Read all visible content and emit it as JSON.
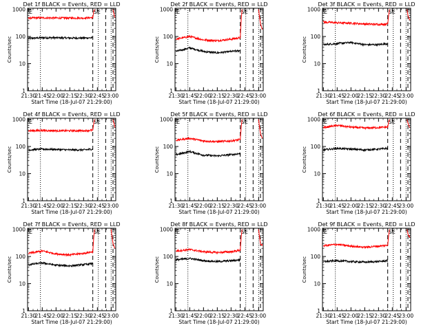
{
  "figure": {
    "common": {
      "ylabel": "Counts/sec",
      "xlabel": "Start Time (18-Jul-07 21:29:00)",
      "y_ticks": [
        "1",
        "10",
        "100",
        "1000"
      ],
      "x_ticks": [
        "21:30",
        "21:45",
        "22:00",
        "22:15",
        "22:30",
        "22:45",
        "23:00"
      ],
      "corner_marks": [
        "E",
        "SE"
      ]
    },
    "colors": {
      "events": "#000000",
      "lld": "#ff0000",
      "axes": "#000000",
      "background": "#ffffff"
    }
  },
  "chart_data": [
    {
      "type": "line",
      "title": "Det 1f BLACK = Events, RED = LLD",
      "ylog": true,
      "ylim": [
        1,
        1100
      ],
      "xlim": [
        "21:29",
        "23:05"
      ],
      "xlabel": "Start Time (18-Jul-07 21:29:00)",
      "ylabel": "Counts/sec",
      "markers": {
        "dotted": [
          "21:43",
          "22:46",
          "23:00"
        ],
        "dashed": [
          "22:40",
          "22:54",
          "23:02"
        ]
      },
      "series": [
        {
          "name": "Events",
          "color": "#000000",
          "x": [
            "21:30",
            "21:45",
            "22:00",
            "22:15",
            "22:30",
            "22:40"
          ],
          "y": [
            85,
            90,
            90,
            88,
            88,
            90
          ]
        },
        {
          "name": "LLD",
          "color": "#ff0000",
          "x": [
            "21:30",
            "21:45",
            "22:00",
            "22:15",
            "22:30",
            "22:40",
            "22:41",
            "22:42"
          ],
          "y": [
            480,
            490,
            480,
            480,
            480,
            500,
            800,
            1000
          ]
        },
        {
          "name": "LLD",
          "color": "#ff0000",
          "x": [
            "23:02",
            "23:03",
            "23:04"
          ],
          "y": [
            1000,
            700,
            500
          ]
        }
      ]
    },
    {
      "type": "line",
      "title": "Det 2f BLACK = Events, RED = LLD",
      "ylog": true,
      "ylim": [
        1,
        1100
      ],
      "xlim": [
        "21:29",
        "23:05"
      ],
      "xlabel": "Start Time (18-Jul-07 21:29:00)",
      "ylabel": "Counts/sec",
      "markers": {
        "dotted": [
          "21:43",
          "22:46",
          "23:00"
        ],
        "dashed": [
          "22:40",
          "22:54",
          "23:02"
        ]
      },
      "series": [
        {
          "name": "Events",
          "color": "#000000",
          "x": [
            "21:30",
            "21:45",
            "22:00",
            "22:15",
            "22:30",
            "22:40"
          ],
          "y": [
            28,
            38,
            28,
            25,
            28,
            30
          ]
        },
        {
          "name": "LLD",
          "color": "#ff0000",
          "x": [
            "21:30",
            "21:45",
            "22:00",
            "22:15",
            "22:30",
            "22:40",
            "22:41",
            "22:42"
          ],
          "y": [
            80,
            100,
            75,
            70,
            80,
            90,
            400,
            1000
          ]
        },
        {
          "name": "LLD",
          "color": "#ff0000",
          "x": [
            "23:00",
            "23:01",
            "23:02",
            "23:04"
          ],
          "y": [
            1000,
            500,
            300,
            180
          ]
        }
      ]
    },
    {
      "type": "line",
      "title": "Det 3f BLACK = Events, RED = LLD",
      "ylog": true,
      "ylim": [
        1,
        1100
      ],
      "xlim": [
        "21:29",
        "23:05"
      ],
      "xlabel": "Start Time (18-Jul-07 21:29:00)",
      "ylabel": "Counts/sec",
      "markers": {
        "dotted": [
          "21:43",
          "22:46",
          "23:00"
        ],
        "dashed": [
          "22:40",
          "22:54",
          "23:02"
        ]
      },
      "series": [
        {
          "name": "Events",
          "color": "#000000",
          "x": [
            "21:30",
            "21:45",
            "22:00",
            "22:15",
            "22:30",
            "22:40"
          ],
          "y": [
            50,
            55,
            60,
            50,
            50,
            55
          ]
        },
        {
          "name": "LLD",
          "color": "#ff0000",
          "x": [
            "21:30",
            "21:45",
            "22:00",
            "22:15",
            "22:30",
            "22:40",
            "22:41",
            "22:42"
          ],
          "y": [
            340,
            320,
            310,
            290,
            280,
            290,
            600,
            1000
          ]
        },
        {
          "name": "LLD",
          "color": "#ff0000",
          "x": [
            "23:01",
            "23:02",
            "23:04"
          ],
          "y": [
            1000,
            600,
            400
          ]
        }
      ]
    },
    {
      "type": "line",
      "title": "Det 4f BLACK = Events, RED = LLD",
      "ylog": true,
      "ylim": [
        1,
        1100
      ],
      "xlim": [
        "21:29",
        "23:05"
      ],
      "xlabel": "Start Time (18-Jul-07 21:29:00)",
      "ylabel": "Counts/sec",
      "markers": {
        "dotted": [
          "21:43",
          "22:46",
          "23:00"
        ],
        "dashed": [
          "22:40",
          "22:54",
          "23:02"
        ]
      },
      "series": [
        {
          "name": "Events",
          "color": "#000000",
          "x": [
            "21:30",
            "21:45",
            "22:00",
            "22:15",
            "22:30",
            "22:40"
          ],
          "y": [
            75,
            80,
            78,
            75,
            75,
            80
          ]
        },
        {
          "name": "LLD",
          "color": "#ff0000",
          "x": [
            "21:30",
            "21:45",
            "22:00",
            "22:15",
            "22:30",
            "22:40",
            "22:41",
            "22:42"
          ],
          "y": [
            380,
            390,
            380,
            380,
            380,
            400,
            700,
            1000
          ]
        },
        {
          "name": "LLD",
          "color": "#ff0000",
          "x": [
            "23:02",
            "23:03",
            "23:04"
          ],
          "y": [
            1000,
            700,
            500
          ]
        }
      ]
    },
    {
      "type": "line",
      "title": "Det 5f BLACK = Events, RED = LLD",
      "ylog": true,
      "ylim": [
        1,
        1100
      ],
      "xlim": [
        "21:29",
        "23:05"
      ],
      "xlabel": "Start Time (18-Jul-07 21:29:00)",
      "ylabel": "Counts/sec",
      "markers": {
        "dotted": [
          "21:43",
          "22:46",
          "23:00"
        ],
        "dashed": [
          "22:40",
          "22:54",
          "23:02"
        ]
      },
      "series": [
        {
          "name": "Events",
          "color": "#000000",
          "x": [
            "21:30",
            "21:45",
            "22:00",
            "22:15",
            "22:30",
            "22:40"
          ],
          "y": [
            50,
            65,
            48,
            45,
            50,
            55
          ]
        },
        {
          "name": "LLD",
          "color": "#ff0000",
          "x": [
            "21:30",
            "21:45",
            "22:00",
            "22:15",
            "22:30",
            "22:40",
            "22:41",
            "22:42"
          ],
          "y": [
            170,
            200,
            160,
            150,
            160,
            180,
            500,
            1000
          ]
        },
        {
          "name": "LLD",
          "color": "#ff0000",
          "x": [
            "23:00",
            "23:01",
            "23:02",
            "23:04"
          ],
          "y": [
            1000,
            500,
            300,
            200
          ]
        }
      ]
    },
    {
      "type": "line",
      "title": "Det 6f BLACK = Events, RED = LLD",
      "ylog": true,
      "ylim": [
        1,
        1100
      ],
      "xlim": [
        "21:29",
        "23:05"
      ],
      "xlabel": "Start Time (18-Jul-07 21:29:00)",
      "ylabel": "Counts/sec",
      "markers": {
        "dotted": [
          "21:43",
          "22:46",
          "23:00"
        ],
        "dashed": [
          "22:40",
          "22:54",
          "23:02"
        ]
      },
      "series": [
        {
          "name": "Events",
          "color": "#000000",
          "x": [
            "21:30",
            "21:45",
            "22:00",
            "22:15",
            "22:30",
            "22:40"
          ],
          "y": [
            75,
            85,
            80,
            75,
            80,
            85
          ]
        },
        {
          "name": "LLD",
          "color": "#ff0000",
          "x": [
            "21:30",
            "21:45",
            "22:00",
            "22:15",
            "22:30",
            "22:40",
            "22:41",
            "22:42"
          ],
          "y": [
            500,
            600,
            520,
            480,
            500,
            520,
            800,
            1000
          ]
        },
        {
          "name": "LLD",
          "color": "#ff0000",
          "x": [
            "23:01",
            "23:02",
            "23:04"
          ],
          "y": [
            1000,
            700,
            500
          ]
        }
      ]
    },
    {
      "type": "line",
      "title": "Det 7f BLACK = Events, RED = LLD",
      "ylog": true,
      "ylim": [
        1,
        1100
      ],
      "xlim": [
        "21:29",
        "23:05"
      ],
      "xlabel": "Start Time (18-Jul-07 21:29:00)",
      "ylabel": "Counts/sec",
      "markers": {
        "dotted": [
          "21:43",
          "22:46",
          "23:00"
        ],
        "dashed": [
          "22:40",
          "22:54",
          "23:02"
        ]
      },
      "series": [
        {
          "name": "Events",
          "color": "#000000",
          "x": [
            "21:30",
            "21:45",
            "22:00",
            "22:15",
            "22:30",
            "22:40"
          ],
          "y": [
            50,
            58,
            48,
            45,
            50,
            55
          ]
        },
        {
          "name": "LLD",
          "color": "#ff0000",
          "x": [
            "21:30",
            "21:45",
            "22:00",
            "22:15",
            "22:30",
            "22:40",
            "22:41",
            "22:42"
          ],
          "y": [
            130,
            160,
            125,
            115,
            130,
            150,
            500,
            1000
          ]
        },
        {
          "name": "LLD",
          "color": "#ff0000",
          "x": [
            "23:00",
            "23:01",
            "23:02",
            "23:04"
          ],
          "y": [
            1000,
            500,
            300,
            200
          ]
        }
      ]
    },
    {
      "type": "line",
      "title": "Det 8f BLACK = Events, RED = LLD",
      "ylog": true,
      "ylim": [
        1,
        1100
      ],
      "xlim": [
        "21:29",
        "23:05"
      ],
      "xlabel": "Start Time (18-Jul-07 21:29:00)",
      "ylabel": "Counts/sec",
      "markers": {
        "dotted": [
          "21:43",
          "22:46",
          "23:00"
        ],
        "dashed": [
          "22:40",
          "22:54",
          "23:02"
        ]
      },
      "series": [
        {
          "name": "Events",
          "color": "#000000",
          "x": [
            "21:30",
            "21:45",
            "22:00",
            "22:15",
            "22:30",
            "22:40"
          ],
          "y": [
            75,
            85,
            70,
            65,
            70,
            75
          ]
        },
        {
          "name": "LLD",
          "color": "#ff0000",
          "x": [
            "21:30",
            "21:45",
            "22:00",
            "22:15",
            "22:30",
            "22:40",
            "22:41",
            "22:42"
          ],
          "y": [
            160,
            180,
            150,
            140,
            150,
            170,
            500,
            1000
          ]
        },
        {
          "name": "LLD",
          "color": "#ff0000",
          "x": [
            "23:00",
            "23:01",
            "23:02",
            "23:04"
          ],
          "y": [
            1000,
            500,
            300,
            250
          ]
        }
      ]
    },
    {
      "type": "line",
      "title": "Det 9f BLACK = Events, RED = LLD",
      "ylog": true,
      "ylim": [
        1,
        1100
      ],
      "xlim": [
        "21:29",
        "23:05"
      ],
      "xlabel": "Start Time (18-Jul-07 21:29:00)",
      "ylabel": "Counts/sec",
      "markers": {
        "dotted": [
          "21:43",
          "22:46",
          "23:00"
        ],
        "dashed": [
          "22:40",
          "22:54",
          "23:02"
        ]
      },
      "series": [
        {
          "name": "Events",
          "color": "#000000",
          "x": [
            "21:30",
            "21:45",
            "22:00",
            "22:15",
            "22:30",
            "22:40"
          ],
          "y": [
            65,
            70,
            65,
            62,
            65,
            70
          ]
        },
        {
          "name": "LLD",
          "color": "#ff0000",
          "x": [
            "21:30",
            "21:45",
            "22:00",
            "22:15",
            "22:30",
            "22:40",
            "22:41",
            "22:42"
          ],
          "y": [
            250,
            280,
            240,
            220,
            240,
            260,
            600,
            1000
          ]
        },
        {
          "name": "LLD",
          "color": "#ff0000",
          "x": [
            "23:01",
            "23:02",
            "23:04"
          ],
          "y": [
            1000,
            700,
            500
          ]
        }
      ]
    }
  ]
}
